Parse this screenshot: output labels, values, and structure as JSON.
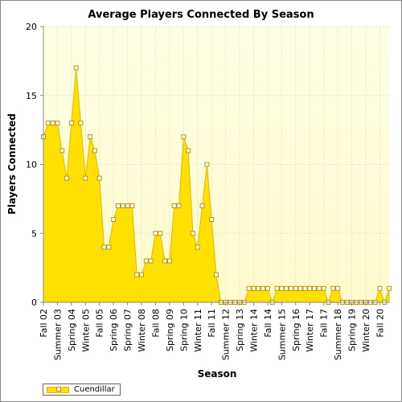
{
  "chart_data": {
    "type": "area",
    "title": "Average Players Connected By Season",
    "xlabel": "Season",
    "ylabel": "Players Connected",
    "ylim": [
      0,
      20
    ],
    "yticks": [
      0,
      5,
      10,
      15,
      20
    ],
    "tick_labels": [
      "Fall 02",
      "Summer 03",
      "Spring 04",
      "Winter 05",
      "Fall 05",
      "Spring 06",
      "Spring 07",
      "Winter 08",
      "Fall 08",
      "Spring 09",
      "Spring 10",
      "Winter 11",
      "Fall 11",
      "Summer 12",
      "Spring 13",
      "Winter 14",
      "Fall 14",
      "Summer 15",
      "Spring 16",
      "Winter 17",
      "Fall 17",
      "Summer 18",
      "Spring 19",
      "Winter 20",
      "Fall 20"
    ],
    "grid": true,
    "legend_position": "bottom-left",
    "series": [
      {
        "name": "Cuendillar",
        "color": "#ffe000",
        "values": [
          12,
          13,
          13,
          13,
          11,
          9,
          13,
          17,
          13,
          9,
          12,
          11,
          9,
          4,
          4,
          6,
          7,
          7,
          7,
          7,
          2,
          2,
          3,
          3,
          5,
          5,
          3,
          3,
          7,
          7,
          12,
          11,
          5,
          4,
          7,
          10,
          6,
          2,
          0,
          0,
          0,
          0,
          0,
          0,
          1,
          1,
          1,
          1,
          1,
          0,
          1,
          1,
          1,
          1,
          1,
          1,
          1,
          1,
          1,
          1,
          1,
          0,
          1,
          1,
          0,
          0,
          0,
          0,
          0,
          0,
          0,
          0,
          1,
          0,
          1
        ]
      }
    ]
  },
  "colors": {
    "plot_background_top": "#ffffe6",
    "plot_background_bottom": "#fffbcd",
    "area_fill": "#ffe000",
    "area_edge": "#e0b800",
    "marker_fill": "#ffffff",
    "marker_stroke": "#b89600",
    "grid": "#d8d8c0"
  }
}
